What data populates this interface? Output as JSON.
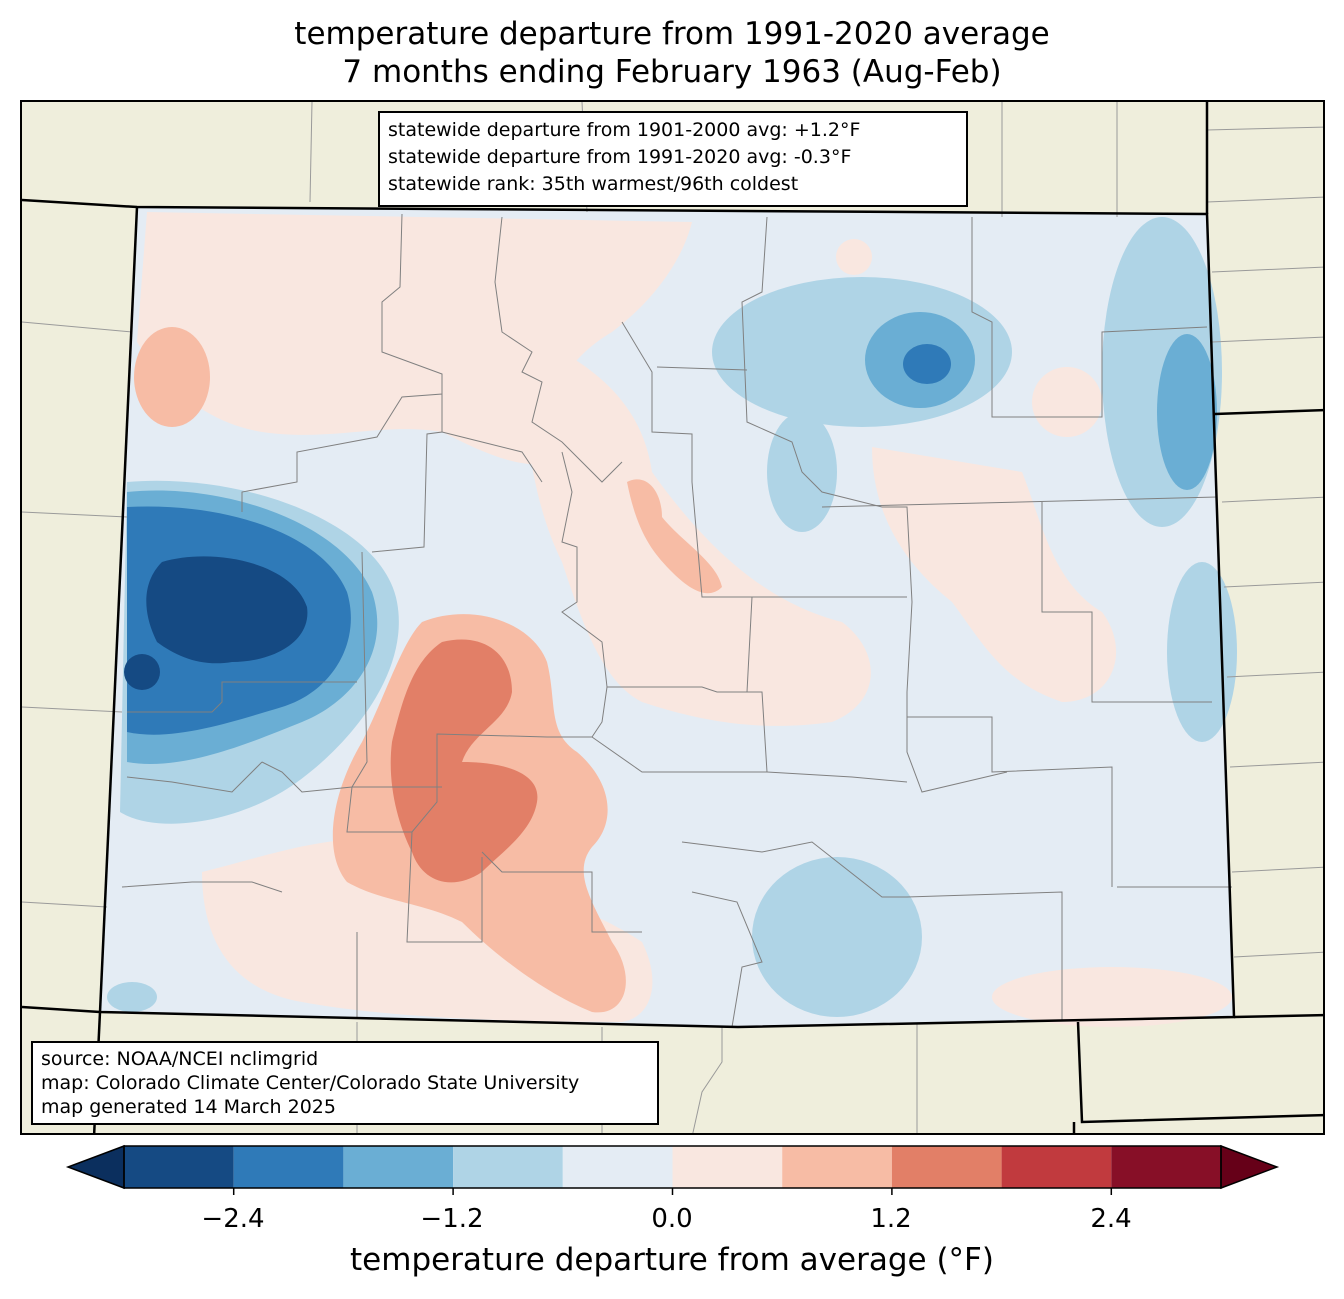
{
  "title_line1": "temperature departure from 1991-2020 average",
  "title_line2": "7 months ending February 1963 (Aug-Feb)",
  "stats": {
    "line1": "statewide departure from 1901-2000 avg: +1.2°F",
    "line2": "statewide departure from 1991-2020 avg: -0.3°F",
    "line3": "statewide rank: 35th warmest/96th coldest"
  },
  "source": {
    "line1": "source: NOAA/NCEI nclimgrid",
    "line2": "map: Colorado Climate Center/Colorado State University",
    "line3": "map generated 14 March 2025"
  },
  "colorbar": {
    "label": "temperature departure from average (°F)",
    "ticks": [
      "−2.4",
      "−1.2",
      "0.0",
      "1.2",
      "2.4"
    ],
    "bins": [
      {
        "min": -3.0,
        "max": -2.4,
        "color": "#154a83"
      },
      {
        "min": -2.4,
        "max": -1.8,
        "color": "#2f7ab8"
      },
      {
        "min": -1.8,
        "max": -1.2,
        "color": "#6aaed4"
      },
      {
        "min": -1.2,
        "max": -0.6,
        "color": "#afd4e6"
      },
      {
        "min": -0.6,
        "max": 0.0,
        "color": "#e4ecf4"
      },
      {
        "min": 0.0,
        "max": 0.6,
        "color": "#f9e7e0"
      },
      {
        "min": 0.6,
        "max": 1.2,
        "color": "#f7bca5"
      },
      {
        "min": 1.2,
        "max": 1.8,
        "color": "#e27f67"
      },
      {
        "min": 1.8,
        "max": 2.4,
        "color": "#c13a3e"
      },
      {
        "min": 2.4,
        "max": 3.0,
        "color": "#870f27"
      }
    ],
    "under_color": "#0b2f5e",
    "over_color": "#660018"
  },
  "map_colors": {
    "land_outside": "#efeedc",
    "state_border": "#000000",
    "county_border": "#808080"
  }
}
